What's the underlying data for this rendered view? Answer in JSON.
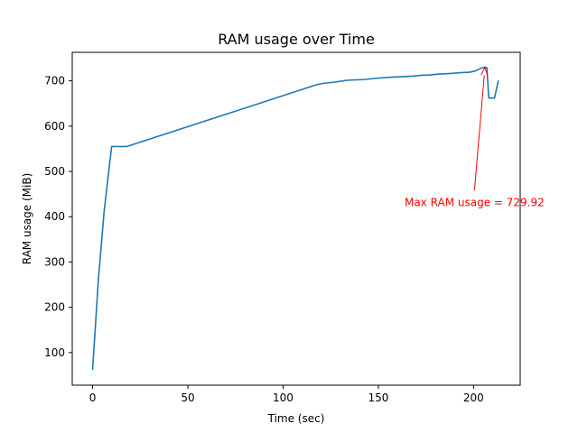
{
  "chart_data": {
    "type": "line",
    "title": "RAM usage over Time",
    "xlabel": "Time (sec)",
    "ylabel": "RAM usage (MiB)",
    "xlim": [
      -10.7,
      224.5
    ],
    "ylim": [
      28,
      763
    ],
    "x_ticks": [
      0,
      50,
      100,
      150,
      200
    ],
    "y_ticks": [
      100,
      200,
      300,
      400,
      500,
      600,
      700
    ],
    "grid": false,
    "legend": "none",
    "series": [
      {
        "color": "#1f77b4",
        "points": [
          [
            0,
            63
          ],
          [
            3,
            260
          ],
          [
            6,
            410
          ],
          [
            9,
            520
          ],
          [
            10,
            555
          ],
          [
            18,
            555
          ],
          [
            118,
            692
          ],
          [
            122,
            695
          ],
          [
            127,
            697
          ],
          [
            133,
            701
          ],
          [
            137,
            702
          ],
          [
            143,
            703
          ],
          [
            147,
            705
          ],
          [
            153,
            707
          ],
          [
            157,
            708
          ],
          [
            162,
            709
          ],
          [
            167,
            710
          ],
          [
            172,
            712
          ],
          [
            177,
            713
          ],
          [
            182,
            715
          ],
          [
            187,
            716
          ],
          [
            193,
            718
          ],
          [
            198,
            719
          ],
          [
            201,
            722
          ],
          [
            204,
            728
          ],
          [
            206,
            730
          ],
          [
            207,
            729
          ],
          [
            208,
            662
          ],
          [
            211,
            662
          ],
          [
            213,
            700
          ]
        ]
      }
    ],
    "annotations": [
      {
        "text": "Max RAM usage = 729.92",
        "color": "#ff0000",
        "text_at": [
          200.5,
          431
        ],
        "arrow_to": [
          206.0,
          729.92
        ]
      }
    ]
  }
}
